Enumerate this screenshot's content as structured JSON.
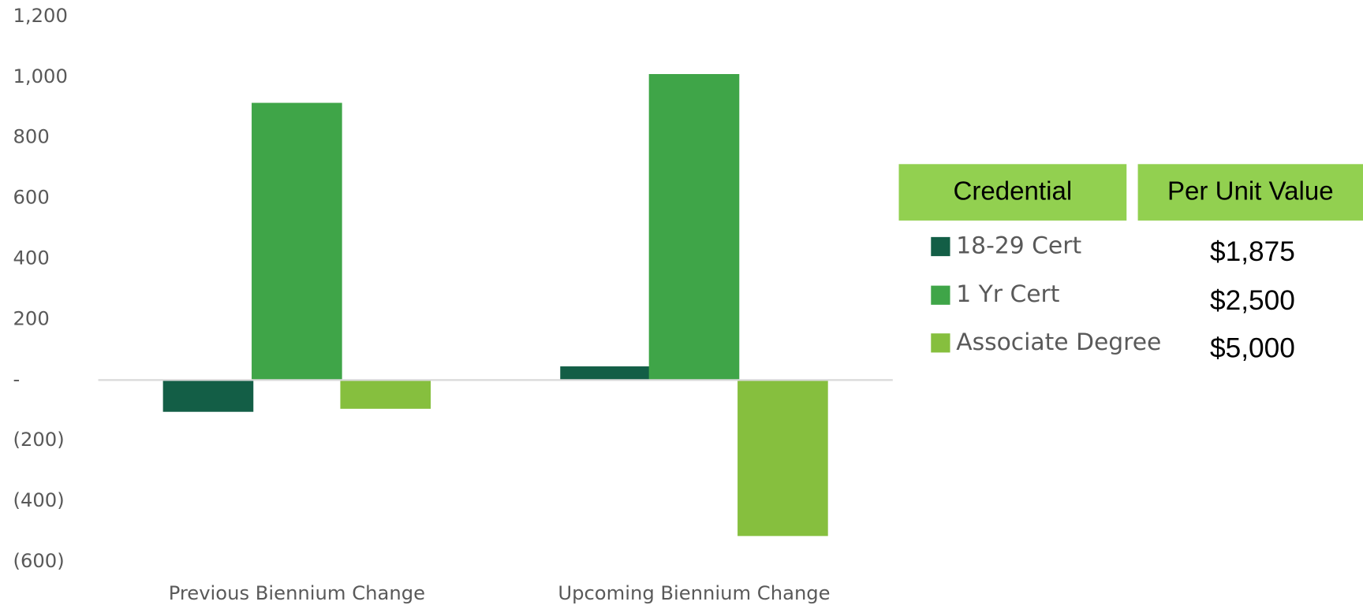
{
  "chart_data": {
    "type": "bar",
    "categories": [
      "Previous Biennium Change",
      "Upcoming Biennium Change"
    ],
    "series": [
      {
        "name": "18-29 Cert",
        "color": "#135e46",
        "values": [
          -105,
          45
        ]
      },
      {
        "name": "1 Yr Cert",
        "color": "#3fa548",
        "values": [
          915,
          1010
        ]
      },
      {
        "name": "Associate Degree",
        "color": "#86bf3e",
        "values": [
          -95,
          -515
        ]
      }
    ],
    "ylim": [
      -600,
      1200
    ],
    "yticks": [
      {
        "value": 1200,
        "label": "1,200"
      },
      {
        "value": 1000,
        "label": "1,000"
      },
      800,
      600,
      400,
      200,
      {
        "value": 0,
        "label": "-"
      },
      {
        "value": -200,
        "label": "(200)"
      },
      {
        "value": -400,
        "label": "(400)"
      },
      {
        "value": -600,
        "label": "(600)"
      }
    ],
    "table": {
      "headers": [
        "Credential",
        "Per Unit Value"
      ],
      "header_color": "#92d050",
      "values": [
        "$1,875",
        "$2,500",
        "$5,000"
      ]
    }
  }
}
